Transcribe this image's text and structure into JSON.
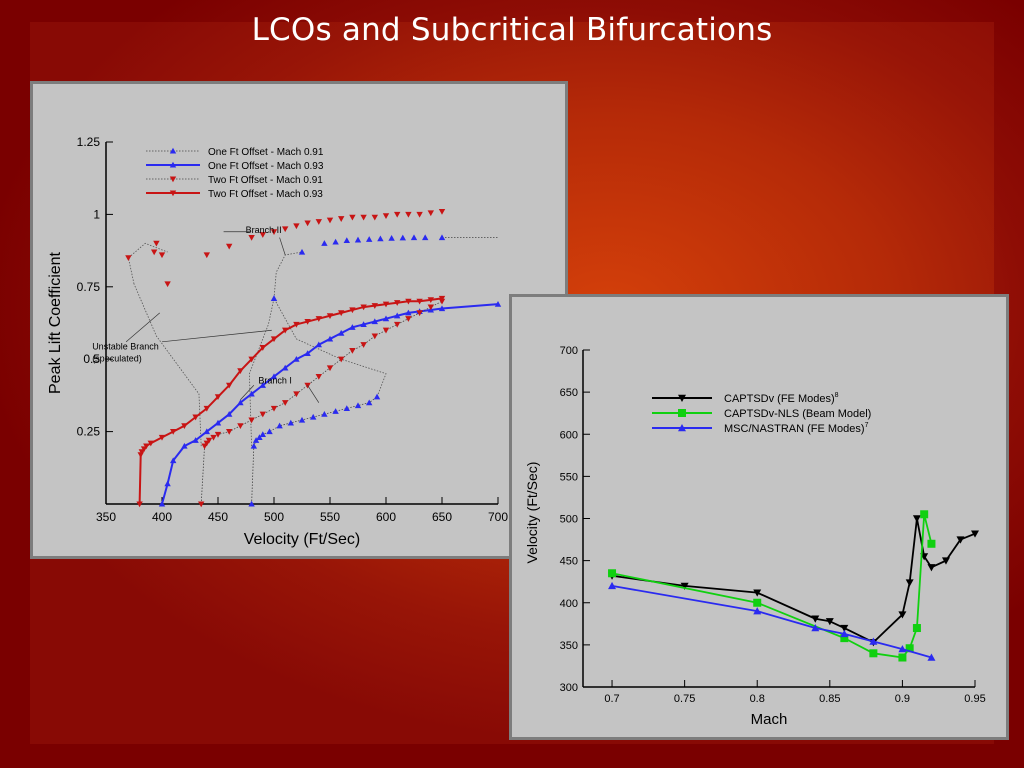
{
  "slide": {
    "title": "LCOs and Subcritical Bifurcations",
    "background_color": "#9a1406",
    "panel_color": "#c4c4c4"
  },
  "chart_data": [
    {
      "type": "line",
      "xlabel": "Velocity (Ft/Sec)",
      "ylabel": "Peak Lift Coefficient",
      "xlim": [
        350,
        700
      ],
      "ylim": [
        0,
        1.25
      ],
      "xticks": [
        350,
        400,
        450,
        500,
        550,
        600,
        650,
        700
      ],
      "yticks": [
        0.25,
        0.5,
        0.75,
        1,
        1.25
      ],
      "legend": "top-left",
      "grid": false,
      "series": [
        {
          "name": "One Ft Offset - Mach 0.91",
          "color": "#2a2af0",
          "marker": "triangle-up",
          "line": "dotted",
          "x": [
            480,
            482,
            484,
            487,
            490,
            496,
            505,
            515,
            525,
            535,
            545,
            555,
            565,
            575,
            585,
            592
          ],
          "y": [
            0.0,
            0.2,
            0.22,
            0.23,
            0.24,
            0.25,
            0.27,
            0.28,
            0.29,
            0.3,
            0.31,
            0.32,
            0.33,
            0.34,
            0.35,
            0.37
          ]
        },
        {
          "name": "One Ft Offset - Mach 0.93",
          "color": "#2a2af0",
          "marker": "triangle-up",
          "line": "solid",
          "x": [
            400,
            405,
            410,
            420,
            430,
            440,
            450,
            460,
            470,
            480,
            490,
            500,
            510,
            520,
            530,
            540,
            550,
            560,
            570,
            580,
            590,
            600,
            610,
            620,
            630,
            640,
            650,
            700
          ],
          "y": [
            0.0,
            0.07,
            0.15,
            0.2,
            0.22,
            0.25,
            0.28,
            0.31,
            0.35,
            0.38,
            0.41,
            0.44,
            0.47,
            0.5,
            0.52,
            0.55,
            0.57,
            0.59,
            0.61,
            0.62,
            0.63,
            0.64,
            0.65,
            0.66,
            0.665,
            0.67,
            0.675,
            0.69
          ]
        },
        {
          "name": "Two Ft Offset - Mach 0.91",
          "color": "#c81414",
          "marker": "triangle-down",
          "line": "dotted",
          "x": [
            435,
            438,
            440,
            442,
            446,
            450,
            460,
            470,
            480,
            490,
            500,
            510,
            520,
            530,
            540,
            550,
            560,
            570,
            580,
            590,
            600,
            610,
            620,
            630,
            640,
            650
          ],
          "y": [
            0.0,
            0.2,
            0.21,
            0.22,
            0.23,
            0.24,
            0.25,
            0.27,
            0.29,
            0.31,
            0.33,
            0.35,
            0.38,
            0.41,
            0.44,
            0.47,
            0.5,
            0.53,
            0.55,
            0.58,
            0.6,
            0.62,
            0.64,
            0.66,
            0.68,
            0.7
          ]
        },
        {
          "name": "Two Ft Offset - Mach 0.93",
          "color": "#c81414",
          "marker": "triangle-down",
          "line": "solid",
          "x": [
            380,
            381,
            382,
            384,
            386,
            390,
            400,
            410,
            420,
            430,
            440,
            450,
            460,
            470,
            480,
            490,
            500,
            510,
            520,
            530,
            540,
            550,
            560,
            570,
            580,
            590,
            600,
            610,
            620,
            630,
            640,
            650
          ],
          "y": [
            0.0,
            0.17,
            0.18,
            0.19,
            0.2,
            0.21,
            0.23,
            0.25,
            0.27,
            0.3,
            0.33,
            0.37,
            0.41,
            0.46,
            0.5,
            0.54,
            0.57,
            0.6,
            0.62,
            0.63,
            0.64,
            0.65,
            0.66,
            0.67,
            0.68,
            0.685,
            0.69,
            0.695,
            0.7,
            0.7,
            0.705,
            0.71
          ]
        }
      ],
      "upper_branch_series": [
        {
          "color": "#2a2af0",
          "marker": "triangle-up",
          "line": "none",
          "x": [
            500,
            525,
            545,
            555,
            565,
            575,
            585,
            595,
            605,
            615,
            625,
            635,
            650
          ],
          "y": [
            0.71,
            0.87,
            0.9,
            0.905,
            0.91,
            0.912,
            0.914,
            0.916,
            0.918,
            0.919,
            0.92,
            0.92,
            0.92
          ]
        },
        {
          "color": "#c81414",
          "marker": "triangle-down",
          "line": "none",
          "x": [
            370,
            393,
            395,
            400,
            405,
            440,
            460,
            480,
            490,
            500,
            510,
            520,
            530,
            540,
            550,
            560,
            570,
            580,
            590,
            600,
            610,
            620,
            630,
            640,
            650
          ],
          "y": [
            0.85,
            0.87,
            0.9,
            0.86,
            0.76,
            0.86,
            0.89,
            0.92,
            0.93,
            0.94,
            0.95,
            0.96,
            0.97,
            0.975,
            0.98,
            0.985,
            0.99,
            0.99,
            0.99,
            0.995,
            1.0,
            1.0,
            1.0,
            1.005,
            1.01
          ]
        }
      ],
      "annotations": [
        {
          "text": "Branch II",
          "x": 480,
          "y": 0.95
        },
        {
          "text": "Unstable Branch",
          "x": 360,
          "y": 0.55
        },
        {
          "text": "(speculated)",
          "x": 360,
          "y": 0.52
        },
        {
          "text": "Branch I",
          "x": 470,
          "y": 0.43
        }
      ]
    },
    {
      "type": "line",
      "xlabel": "Mach",
      "ylabel": "Velocity (Ft/Sec)",
      "xlim": [
        0.7,
        0.95
      ],
      "ylim": [
        300,
        700
      ],
      "xticks": [
        0.7,
        0.75,
        0.8,
        0.85,
        0.9,
        0.95
      ],
      "yticks": [
        300,
        350,
        400,
        450,
        500,
        550,
        600,
        650,
        700
      ],
      "legend": "top-right",
      "grid": false,
      "series": [
        {
          "name": "CAPTSDv (FE Modes)",
          "superscript": "8",
          "color": "#000000",
          "marker": "triangle-down",
          "x": [
            0.7,
            0.75,
            0.8,
            0.84,
            0.85,
            0.86,
            0.88,
            0.9,
            0.905,
            0.91,
            0.915,
            0.92,
            0.93,
            0.94,
            0.95
          ],
          "y": [
            432,
            420,
            412,
            381,
            378,
            370,
            353,
            386,
            424,
            500,
            455,
            442,
            450,
            475,
            482
          ]
        },
        {
          "name": "CAPTSDv-NLS (Beam Model)",
          "superscript": "",
          "color": "#10d010",
          "marker": "square",
          "x": [
            0.7,
            0.8,
            0.86,
            0.88,
            0.9,
            0.905,
            0.91,
            0.915,
            0.92
          ],
          "y": [
            435,
            400,
            358,
            340,
            335,
            346,
            370,
            505,
            470
          ]
        },
        {
          "name": "MSC/NASTRAN (FE Modes)",
          "superscript": "7",
          "color": "#2a2af0",
          "marker": "triangle-up",
          "x": [
            0.7,
            0.8,
            0.84,
            0.86,
            0.88,
            0.9,
            0.92
          ],
          "y": [
            420,
            390,
            370,
            363,
            354,
            345,
            335
          ]
        }
      ]
    }
  ]
}
